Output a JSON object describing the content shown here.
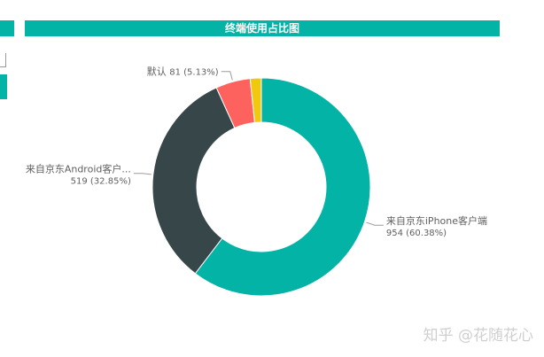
{
  "chart_data": {
    "type": "pie",
    "title": "终端使用占比图",
    "donut": true,
    "slices": [
      {
        "name": "来自京东iPhone客户端",
        "display_name": "来自京东iPhone客户端",
        "value": 954,
        "percent": "60.38%",
        "color": "#03b3a6"
      },
      {
        "name": "来自京东Android客户端",
        "display_name": "来自京东Android客户...",
        "value": 519,
        "percent": "32.85%",
        "color": "#374649"
      },
      {
        "name": "默认",
        "display_name": "默认",
        "value": 81,
        "percent": "5.13%",
        "color": "#fd625e"
      },
      {
        "name": "",
        "display_name": "",
        "value": 26,
        "percent": "",
        "color": "#f2c80f"
      }
    ]
  },
  "watermark": "知乎 @花随花心"
}
